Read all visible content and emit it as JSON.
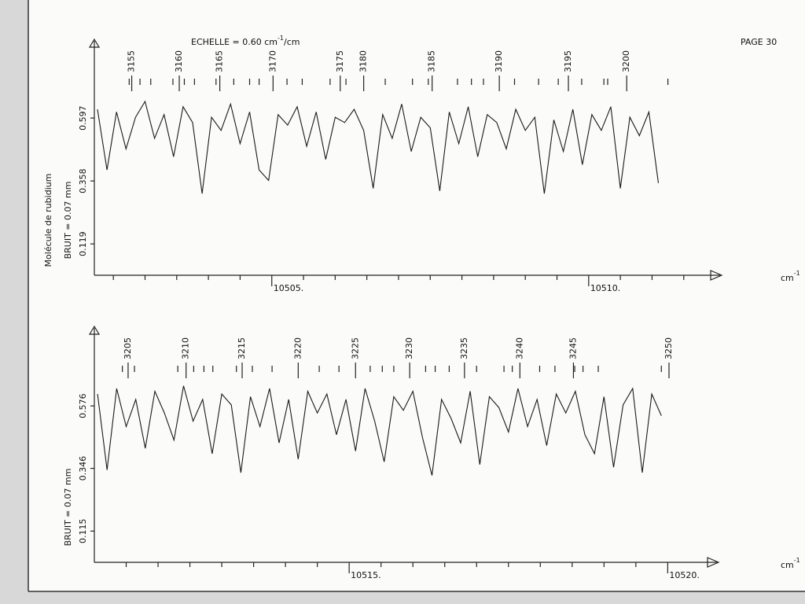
{
  "header": {
    "scale_text": "ECHELLE = 0.60 cm",
    "scale_exp": "-1",
    "scale_unit": "/cm",
    "page": "PAGE 30"
  },
  "side_label": "Molécule de rubidium",
  "chart_data": [
    {
      "type": "line",
      "color": "#1a1a1a",
      "y_label": "BRUIT = 0.07 mm",
      "x_unit": "cm",
      "x_unit_exp": "-1",
      "xlim": [
        10502.2,
        10511.9
      ],
      "xticks": [
        {
          "value": 10505,
          "label": "10505."
        },
        {
          "value": 10510,
          "label": "10510."
        }
      ],
      "minor_xticks": [
        10502.5,
        10503,
        10503.5,
        10504,
        10504.5,
        10505.5,
        10506,
        10506.5,
        10507,
        10507.5,
        10508,
        10508.5,
        10509,
        10509.5,
        10510.5,
        10511,
        10511.5
      ],
      "ylim": [
        0,
        0.866
      ],
      "yticks": [
        0.119,
        0.358,
        0.597
      ],
      "line_labels": [
        {
          "label": "3155",
          "x": 10502.79
        },
        {
          "label": "3160",
          "x": 10503.54
        },
        {
          "label": "3165",
          "x": 10504.18
        },
        {
          "label": "3170",
          "x": 10505.02
        },
        {
          "label": "3175",
          "x": 10506.08
        },
        {
          "label": "3180",
          "x": 10506.45
        },
        {
          "label": "3185",
          "x": 10507.53
        },
        {
          "label": "3190",
          "x": 10508.59
        },
        {
          "label": "3195",
          "x": 10509.68
        },
        {
          "label": "3200",
          "x": 10510.6
        }
      ],
      "line_ticks": [
        10502.75,
        10502.92,
        10503.09,
        10503.44,
        10503.62,
        10503.78,
        10504.12,
        10504.4,
        10504.65,
        10504.8,
        10505.24,
        10505.48,
        10505.92,
        10506.17,
        10506.79,
        10507.22,
        10507.47,
        10507.93,
        10508.15,
        10508.34,
        10508.83,
        10509.21,
        10509.52,
        10509.89,
        10510.24,
        10510.3,
        10511.25
      ],
      "x": [
        10502.25,
        10502.4,
        10502.55,
        10502.7,
        10502.85,
        10503,
        10503.15,
        10503.3,
        10503.45,
        10503.6,
        10503.75,
        10503.9,
        10504.05,
        10504.2,
        10504.35,
        10504.5,
        10504.65,
        10504.8,
        10504.95,
        10505.1,
        10505.25,
        10505.4,
        10505.55,
        10505.7,
        10505.85,
        10506,
        10506.15,
        10506.3,
        10506.45,
        10506.6,
        10506.75,
        10506.9,
        10507.05,
        10507.2,
        10507.35,
        10507.5,
        10507.65,
        10507.8,
        10507.95,
        10508.1,
        10508.25,
        10508.4,
        10508.55,
        10508.7,
        10508.85,
        10509,
        10509.15,
        10509.3,
        10509.45,
        10509.6,
        10509.75,
        10509.9,
        10510.05,
        10510.2,
        10510.35,
        10510.5,
        10510.65,
        10510.8,
        10510.95,
        10511.1
      ],
      "values": [
        0.63,
        0.4,
        0.62,
        0.48,
        0.6,
        0.66,
        0.52,
        0.61,
        0.45,
        0.64,
        0.58,
        0.31,
        0.6,
        0.55,
        0.65,
        0.5,
        0.62,
        0.4,
        0.36,
        0.61,
        0.57,
        0.64,
        0.49,
        0.62,
        0.44,
        0.6,
        0.58,
        0.63,
        0.55,
        0.33,
        0.61,
        0.52,
        0.65,
        0.47,
        0.6,
        0.56,
        0.32,
        0.62,
        0.5,
        0.64,
        0.45,
        0.61,
        0.58,
        0.48,
        0.63,
        0.55,
        0.6,
        0.31,
        0.59,
        0.47,
        0.63,
        0.42,
        0.61,
        0.55,
        0.64,
        0.33,
        0.6,
        0.53,
        0.62,
        0.35
      ]
    },
    {
      "type": "line",
      "color": "#1a1a1a",
      "y_label": "BRUIT = 0.07 mm",
      "x_unit": "cm",
      "x_unit_exp": "-1",
      "xlim": [
        10511.0,
        10520.6
      ],
      "xticks": [
        {
          "value": 10515,
          "label": "10515."
        },
        {
          "value": 10520,
          "label": "10520."
        }
      ],
      "minor_xticks": [
        10511.5,
        10512,
        10512.5,
        10513,
        10513.5,
        10514,
        10514.5,
        10515.5,
        10516,
        10516.5,
        10517,
        10517.5,
        10518,
        10518.5,
        10519,
        10519.5
      ],
      "ylim": [
        0,
        0.84
      ],
      "yticks": [
        0.115,
        0.346,
        0.576
      ],
      "line_labels": [
        {
          "label": "3205",
          "x": 10511.53
        },
        {
          "label": "3210",
          "x": 10512.44
        },
        {
          "label": "3215",
          "x": 10513.32
        },
        {
          "label": "3220",
          "x": 10514.2
        },
        {
          "label": "3225",
          "x": 10515.1
        },
        {
          "label": "3230",
          "x": 10515.95
        },
        {
          "label": "3235",
          "x": 10516.81
        },
        {
          "label": "3240",
          "x": 10517.68
        },
        {
          "label": "3245",
          "x": 10518.52
        },
        {
          "label": "3250",
          "x": 10520.02
        }
      ],
      "line_ticks": [
        10511.44,
        10511.63,
        10512.31,
        10512.56,
        10512.72,
        10512.86,
        10513.23,
        10513.48,
        10513.79,
        10514.53,
        10514.84,
        10515.33,
        10515.52,
        10515.7,
        10516.2,
        10516.35,
        10516.57,
        10517,
        10517.43,
        10517.56,
        10517.99,
        10518.23,
        10518.54,
        10518.67,
        10518.91,
        10519.9
      ],
      "x": [
        10511.05,
        10511.2,
        10511.35,
        10511.5,
        10511.65,
        10511.8,
        10511.95,
        10512.1,
        10512.25,
        10512.4,
        10512.55,
        10512.7,
        10512.85,
        10513,
        10513.15,
        10513.3,
        10513.45,
        10513.6,
        10513.75,
        10513.9,
        10514.05,
        10514.2,
        10514.35,
        10514.5,
        10514.65,
        10514.8,
        10514.95,
        10515.1,
        10515.25,
        10515.4,
        10515.55,
        10515.7,
        10515.85,
        10516,
        10516.15,
        10516.3,
        10516.45,
        10516.6,
        10516.75,
        10516.9,
        10517.05,
        10517.2,
        10517.35,
        10517.5,
        10517.65,
        10517.8,
        10517.95,
        10518.1,
        10518.25,
        10518.4,
        10518.55,
        10518.7,
        10518.85,
        10519,
        10519.15,
        10519.3,
        10519.45,
        10519.6,
        10519.75,
        10519.9
      ],
      "values": [
        0.62,
        0.34,
        0.64,
        0.5,
        0.6,
        0.42,
        0.63,
        0.55,
        0.45,
        0.65,
        0.52,
        0.6,
        0.4,
        0.62,
        0.58,
        0.33,
        0.61,
        0.5,
        0.64,
        0.44,
        0.6,
        0.38,
        0.63,
        0.55,
        0.62,
        0.47,
        0.6,
        0.41,
        0.64,
        0.52,
        0.37,
        0.61,
        0.56,
        0.63,
        0.46,
        0.32,
        0.6,
        0.53,
        0.44,
        0.63,
        0.36,
        0.61,
        0.57,
        0.48,
        0.64,
        0.5,
        0.6,
        0.43,
        0.62,
        0.55,
        0.63,
        0.47,
        0.4,
        0.61,
        0.35,
        0.58,
        0.64,
        0.33,
        0.62,
        0.54
      ]
    }
  ]
}
